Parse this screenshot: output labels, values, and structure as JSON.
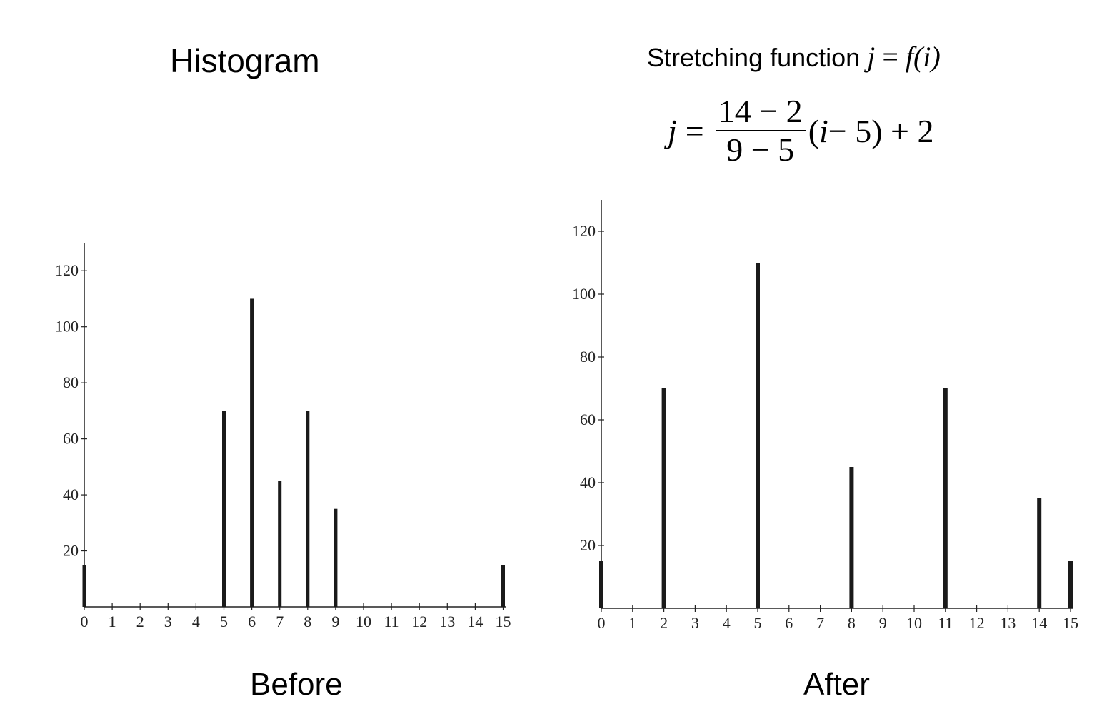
{
  "titles": {
    "left": "Histogram",
    "right_prefix": "Stretching function",
    "right_j": "j",
    "right_eq": "=",
    "right_f": "f",
    "right_arg": "(i)"
  },
  "formula": {
    "lhs": "j",
    "eq": "=",
    "numerator": "14 − 2",
    "denominator": "9 − 5",
    "paren_open": "(",
    "var": "i",
    "rest": " − 5) + 2"
  },
  "captions": {
    "before": "Before",
    "after": "After"
  },
  "colors": {
    "bar": "#1a1a1a",
    "axis": "#222222"
  },
  "chart_data": [
    {
      "type": "bar",
      "title": "Before",
      "categories": [
        "0",
        "1",
        "2",
        "3",
        "4",
        "5",
        "6",
        "7",
        "8",
        "9",
        "10",
        "11",
        "12",
        "13",
        "14",
        "15"
      ],
      "values": [
        15,
        0,
        0,
        0,
        0,
        70,
        110,
        45,
        70,
        35,
        0,
        0,
        0,
        0,
        0,
        15
      ],
      "xlabel": "",
      "ylabel": "",
      "yticks": [
        20,
        40,
        60,
        80,
        100,
        120
      ],
      "ylim": [
        0,
        130
      ]
    },
    {
      "type": "bar",
      "title": "After",
      "categories": [
        "0",
        "1",
        "2",
        "3",
        "4",
        "5",
        "6",
        "7",
        "8",
        "9",
        "10",
        "11",
        "12",
        "13",
        "14",
        "15"
      ],
      "values": [
        15,
        0,
        70,
        0,
        0,
        110,
        0,
        0,
        45,
        0,
        0,
        70,
        0,
        0,
        35,
        15
      ],
      "xlabel": "",
      "ylabel": "",
      "yticks": [
        20,
        40,
        60,
        80,
        100,
        120
      ],
      "ylim": [
        0,
        130
      ]
    }
  ]
}
